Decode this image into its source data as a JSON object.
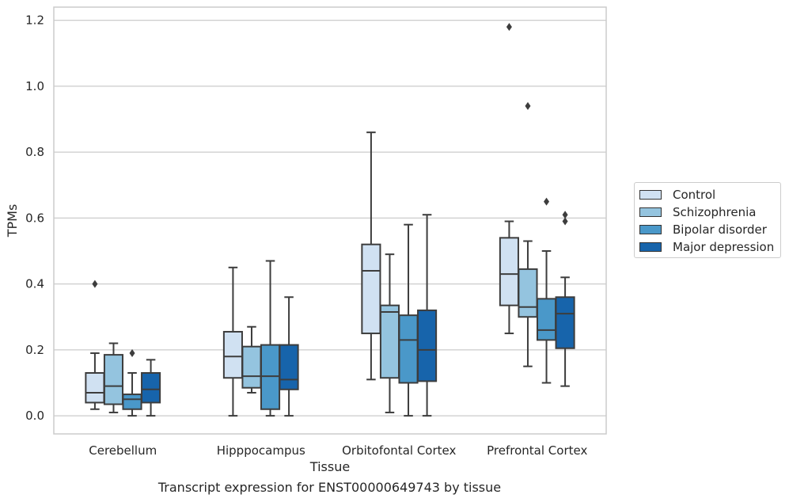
{
  "caption": "Transcript expression for ENST00000649743 by tissue",
  "chart_data": {
    "type": "box",
    "xlabel": "Tissue",
    "ylabel": "TPMs",
    "ylim": [
      -0.055,
      1.24
    ],
    "yticks": [
      0.0,
      0.2,
      0.4,
      0.6,
      0.8,
      1.0,
      1.2
    ],
    "ytick_labels": [
      "0.0",
      "0.2",
      "0.4",
      "0.6",
      "0.8",
      "1.0",
      "1.2"
    ],
    "grid": "horizontal",
    "legend_position": "right",
    "categories": [
      "Cerebellum",
      "Hipppocampus",
      "Orbitofontal Cortex",
      "Prefrontal Cortex"
    ],
    "series": [
      {
        "name": "Control",
        "color": "#d0e1f2",
        "boxes": [
          {
            "whislo": 0.02,
            "q1": 0.04,
            "med": 0.07,
            "q3": 0.13,
            "whishi": 0.19,
            "fliers": [
              0.4
            ]
          },
          {
            "whislo": 0.0,
            "q1": 0.115,
            "med": 0.18,
            "q3": 0.255,
            "whishi": 0.45,
            "fliers": []
          },
          {
            "whislo": 0.11,
            "q1": 0.25,
            "med": 0.44,
            "q3": 0.52,
            "whishi": 0.86,
            "fliers": []
          },
          {
            "whislo": 0.25,
            "q1": 0.335,
            "med": 0.43,
            "q3": 0.54,
            "whishi": 0.59,
            "fliers": [
              1.18
            ]
          }
        ]
      },
      {
        "name": "Schizophrenia",
        "color": "#94c4df",
        "boxes": [
          {
            "whislo": 0.01,
            "q1": 0.035,
            "med": 0.09,
            "q3": 0.185,
            "whishi": 0.22,
            "fliers": []
          },
          {
            "whislo": 0.07,
            "q1": 0.085,
            "med": 0.12,
            "q3": 0.21,
            "whishi": 0.27,
            "fliers": []
          },
          {
            "whislo": 0.01,
            "q1": 0.115,
            "med": 0.315,
            "q3": 0.335,
            "whishi": 0.49,
            "fliers": []
          },
          {
            "whislo": 0.15,
            "q1": 0.3,
            "med": 0.33,
            "q3": 0.445,
            "whishi": 0.53,
            "fliers": [
              0.94
            ]
          }
        ]
      },
      {
        "name": "Bipolar disorder",
        "color": "#4a98c9",
        "boxes": [
          {
            "whislo": 0.0,
            "q1": 0.02,
            "med": 0.05,
            "q3": 0.065,
            "whishi": 0.13,
            "fliers": [
              0.19
            ]
          },
          {
            "whislo": 0.0,
            "q1": 0.02,
            "med": 0.12,
            "q3": 0.215,
            "whishi": 0.47,
            "fliers": []
          },
          {
            "whislo": 0.0,
            "q1": 0.1,
            "med": 0.23,
            "q3": 0.305,
            "whishi": 0.58,
            "fliers": []
          },
          {
            "whislo": 0.1,
            "q1": 0.23,
            "med": 0.26,
            "q3": 0.355,
            "whishi": 0.5,
            "fliers": [
              0.65
            ]
          }
        ]
      },
      {
        "name": "Major depression",
        "color": "#1764ab",
        "boxes": [
          {
            "whislo": 0.0,
            "q1": 0.04,
            "med": 0.08,
            "q3": 0.13,
            "whishi": 0.17,
            "fliers": []
          },
          {
            "whislo": 0.0,
            "q1": 0.08,
            "med": 0.11,
            "q3": 0.215,
            "whishi": 0.36,
            "fliers": []
          },
          {
            "whislo": 0.0,
            "q1": 0.105,
            "med": 0.2,
            "q3": 0.32,
            "whishi": 0.61,
            "fliers": []
          },
          {
            "whislo": 0.09,
            "q1": 0.205,
            "med": 0.31,
            "q3": 0.36,
            "whishi": 0.42,
            "fliers": [
              0.59,
              0.61
            ]
          }
        ]
      }
    ]
  }
}
